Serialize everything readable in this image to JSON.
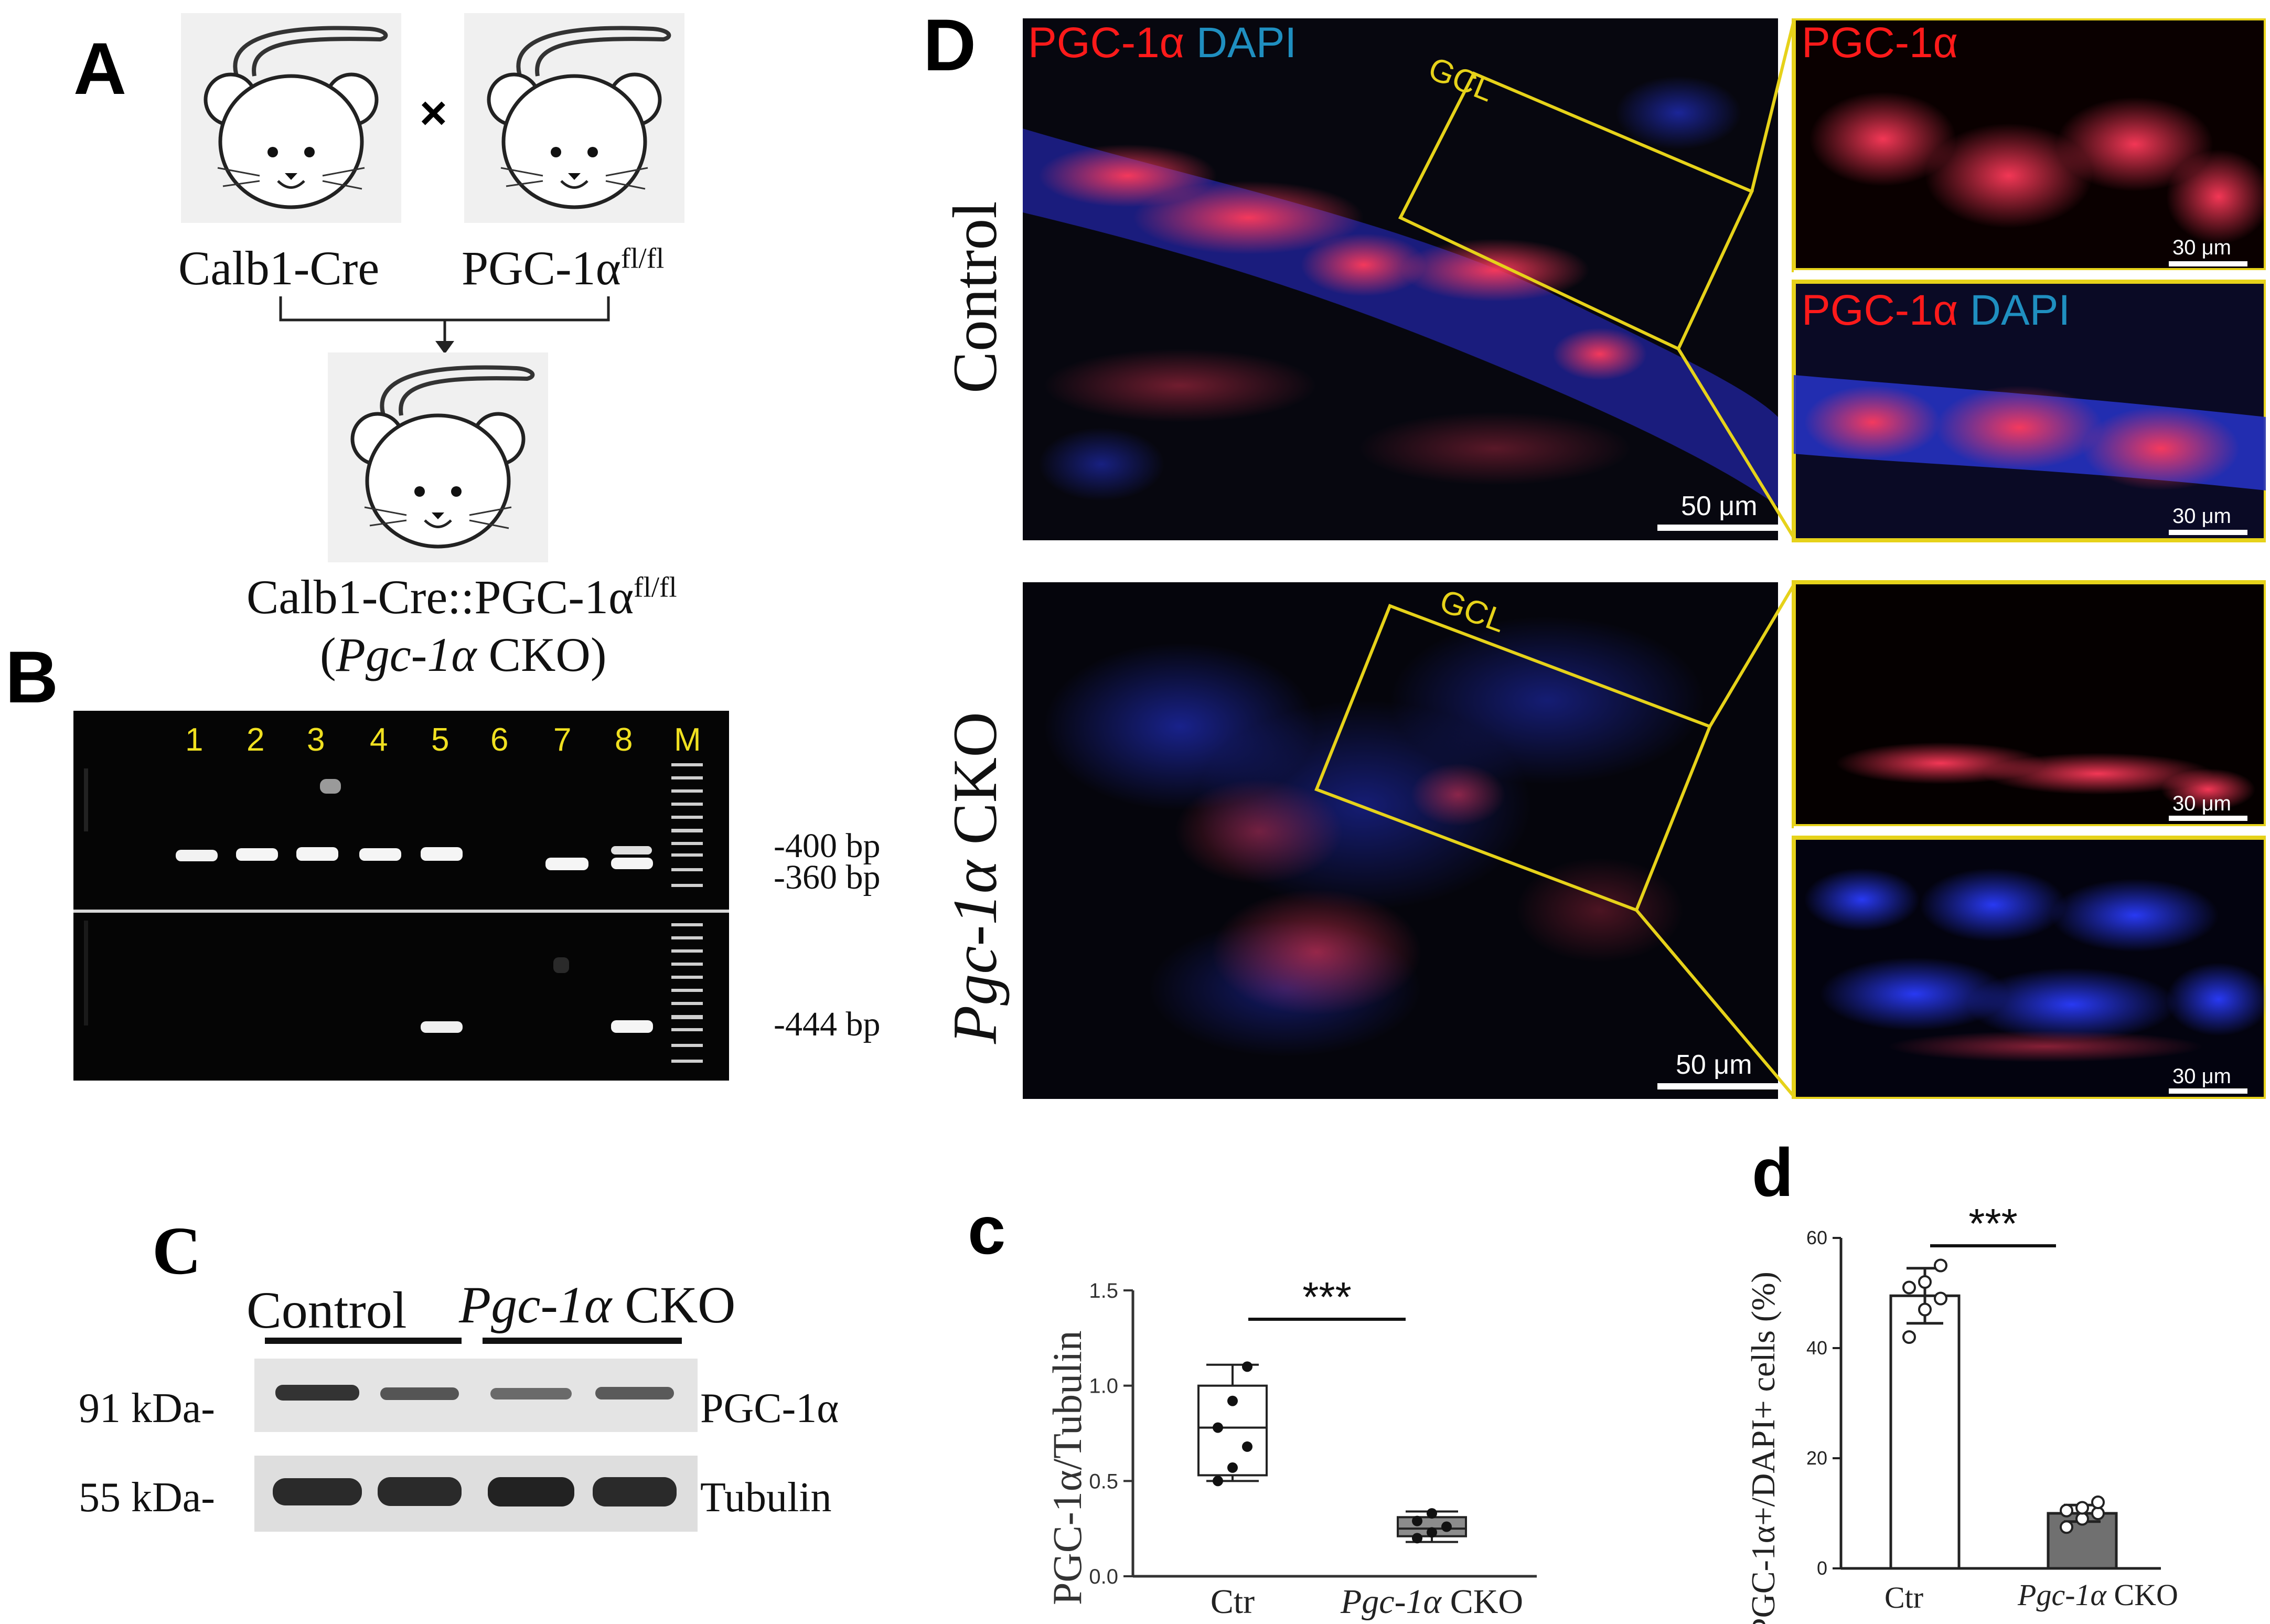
{
  "panelA": {
    "letter": "A",
    "cross_symbol": "×",
    "parent1": "Calb1-Cre",
    "parent2_base": "PGC-1α",
    "parent2_sup": "fl/fl",
    "offspring_base": "Calb1-Cre::PGC-1α",
    "offspring_sup": "fl/fl",
    "offspring_alias_open": "(",
    "offspring_alias_gene": "Pgc-1α",
    "offspring_alias_rest": " CKO)"
  },
  "panelB": {
    "letter": "B",
    "lanes": [
      "1",
      "2",
      "3",
      "4",
      "5",
      "6",
      "7",
      "8",
      "M"
    ],
    "bands_top": [
      "-400 bp",
      "-360 bp"
    ],
    "bands_bottom": [
      "-444 bp"
    ]
  },
  "panelC": {
    "letter": "C",
    "group_control": "Control",
    "group_cko_gene": "Pgc-1α",
    "group_cko_rest": " CKO",
    "row1_size": "91 kDa-",
    "row1_protein": "PGC-1α",
    "row2_size": "55 kDa-",
    "row2_protein": "Tubulin"
  },
  "panelD": {
    "letter": "D",
    "row_control": "Control",
    "row_cko_gene": "Pgc-1α",
    "row_cko_rest": " CKO",
    "stain_red": "PGC-1α",
    "stain_blue": "DAPI",
    "region": "GCL",
    "scale_main": "50 μm",
    "scale_inset": "30 μm",
    "colors": {
      "red": "#ff1a1a",
      "blue": "#1f8fc0",
      "box": "#e6d21a",
      "scale": "#ffffff"
    }
  },
  "chart_data": [
    {
      "type": "box",
      "letter": "c",
      "ylabel": "PGC-1α/Tubulin",
      "ylim": [
        0.0,
        1.5
      ],
      "yticks": [
        "0.0",
        "0.5",
        "1.0",
        "1.5"
      ],
      "categories": [
        "Ctr",
        "Pgc-1α CKO"
      ],
      "significance": "***",
      "boxes": [
        {
          "name": "Ctr",
          "min": 0.5,
          "q1": 0.53,
          "median": 0.78,
          "q3": 1.0,
          "max": 1.11,
          "fill": "#ffffff",
          "points": [
            0.5,
            0.57,
            0.68,
            0.78,
            0.92,
            1.1
          ]
        },
        {
          "name": "Pgc-1α CKO",
          "min": 0.18,
          "q1": 0.21,
          "median": 0.25,
          "q3": 0.31,
          "max": 0.34,
          "fill": "#8c8c8c",
          "points": [
            0.2,
            0.23,
            0.26,
            0.29,
            0.33
          ]
        }
      ]
    },
    {
      "type": "bar",
      "letter": "d",
      "ylabel": "PGC-1α+/DAPI+ cells (%)",
      "ylim": [
        0,
        60
      ],
      "yticks": [
        "0",
        "20",
        "40",
        "60"
      ],
      "categories": [
        "Ctr",
        "Pgc-1α CKO"
      ],
      "significance": "***",
      "values": [
        49.5,
        10
      ],
      "errors": [
        5,
        1.5
      ],
      "fills": [
        "#ffffff",
        "#707070"
      ],
      "points": [
        [
          42,
          47,
          49,
          51,
          52,
          55
        ],
        [
          7.5,
          9,
          10,
          10.5,
          11,
          12
        ]
      ]
    }
  ]
}
